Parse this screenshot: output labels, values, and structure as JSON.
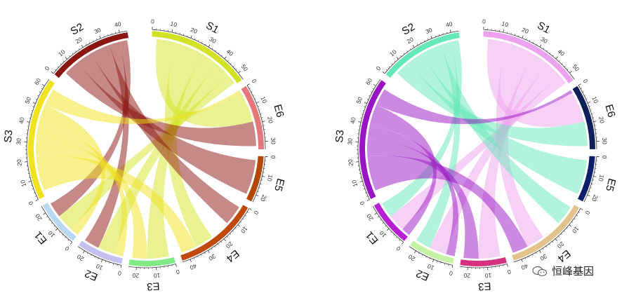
{
  "chart_data": [
    {
      "type": "chord",
      "sectors": [
        {
          "name": "S1",
          "color": "#d3e324",
          "ticks": [
            "0",
            "10",
            "20",
            "30",
            "40",
            "50"
          ]
        },
        {
          "name": "E6",
          "color": "#e5767a",
          "ticks": [
            "0",
            "10",
            "20",
            "30"
          ]
        },
        {
          "name": "E5",
          "color": "#b34700",
          "ticks": [
            "0",
            "10",
            "20"
          ]
        },
        {
          "name": "E4",
          "color": "#c04a0e",
          "ticks": [
            "0",
            "10",
            "20",
            "30",
            "40"
          ]
        },
        {
          "name": "E3",
          "color": "#80ea86",
          "ticks": [
            "0",
            "10",
            "20"
          ]
        },
        {
          "name": "E2",
          "color": "#c3bff1",
          "ticks": [
            "0",
            "10",
            "20"
          ]
        },
        {
          "name": "E1",
          "color": "#b8d7f3",
          "ticks": [
            "0",
            "10",
            "20"
          ]
        },
        {
          "name": "S3",
          "color": "#f0e21c",
          "ticks": [
            "0",
            "10",
            "20",
            "30",
            "40",
            "50",
            "60"
          ]
        },
        {
          "name": "S2",
          "color": "#8b1510",
          "ticks": [
            "0",
            "10",
            "20",
            "30",
            "40"
          ]
        }
      ]
    },
    {
      "type": "chord",
      "sectors": [
        {
          "name": "S1",
          "color": "#eea1f0",
          "ticks": [
            "0",
            "10",
            "20",
            "30",
            "40",
            "50"
          ]
        },
        {
          "name": "E6",
          "color": "#0f1f5a",
          "ticks": [
            "0",
            "10",
            "20",
            "30"
          ]
        },
        {
          "name": "E5",
          "color": "#0b1f6a",
          "ticks": [
            "0",
            "10",
            "20"
          ]
        },
        {
          "name": "E4",
          "color": "#e4c38a",
          "ticks": [
            "0",
            "10",
            "20",
            "30",
            "40"
          ]
        },
        {
          "name": "E3",
          "color": "#d6317f",
          "ticks": [
            "0",
            "10",
            "20"
          ]
        },
        {
          "name": "E2",
          "color": "#c6f2a3",
          "ticks": [
            "0",
            "10",
            "20"
          ]
        },
        {
          "name": "E1",
          "color": "#b71fd2",
          "ticks": [
            "0",
            "10",
            "20"
          ]
        },
        {
          "name": "S3",
          "color": "#9a14c4",
          "ticks": [
            "0",
            "10",
            "20",
            "30",
            "40",
            "50",
            "60"
          ]
        },
        {
          "name": "S2",
          "color": "#65e8b8",
          "ticks": [
            "0",
            "10",
            "20",
            "30",
            "40"
          ]
        }
      ]
    }
  ],
  "watermark": {
    "text": "恒峰基因"
  }
}
